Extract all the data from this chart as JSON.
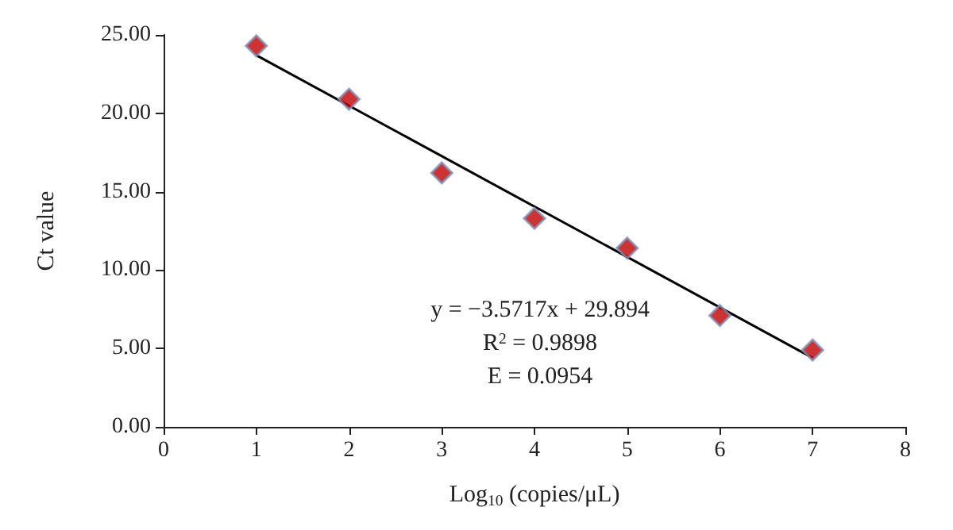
{
  "chart_data": {
    "type": "scatter",
    "xlabel": "Log$_{10}$ (copies/μL)",
    "ylabel": "Ct value",
    "x": [
      1,
      2,
      3,
      4,
      5,
      6,
      7
    ],
    "series": [
      {
        "color": "#c00000",
        "values": [
          24.3,
          20.9,
          16.2,
          13.3,
          11.4,
          7.1,
          4.9
        ]
      },
      {
        "type": "line",
        "color": "#000000",
        "x": [
          1,
          7
        ],
        "values": [
          23.7,
          4.4
        ],
        "marker": "none"
      }
    ],
    "xlim": [
      0,
      8
    ],
    "xticks": [
      0,
      1,
      2,
      3,
      4,
      5,
      6,
      7,
      8
    ],
    "ylim": [
      0,
      25
    ],
    "yticks": [
      {
        "value": 0,
        "label": "0.00"
      },
      {
        "value": 5,
        "label": "5.00"
      },
      {
        "value": 10,
        "label": "10.00"
      },
      {
        "value": 15,
        "label": "15.00"
      },
      {
        "value": 20,
        "label": "20.00"
      },
      {
        "value": 25,
        "label": "25.00"
      }
    ],
    "annotations": [
      "y = −3.5717x + 29.894",
      "R$^{2}$ = 0.9898",
      "E = 0.0954"
    ],
    "grid": false,
    "marker": "diamond",
    "line_style": "solid"
  }
}
